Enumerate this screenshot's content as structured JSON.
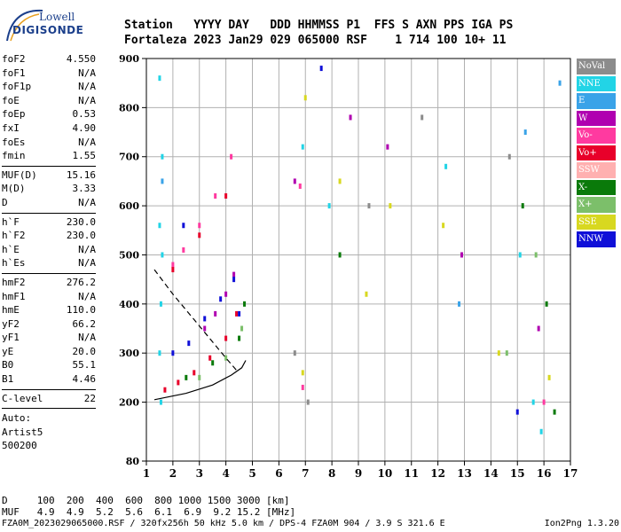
{
  "logo": {
    "line1": "Lowell",
    "line2": "DIGISONDE"
  },
  "header": {
    "row1": "Station   YYYY DAY   DDD HHMMSS P1  FFS S AXN PPS IGA PS",
    "row2": "Fortaleza 2023 Jan29 029 065000 RSF    1 714 100 10+ 11"
  },
  "params": {
    "group1": [
      {
        "label": "foF2",
        "value": "4.550"
      },
      {
        "label": "foF1",
        "value": "N/A"
      },
      {
        "label": "foF1p",
        "value": "N/A"
      },
      {
        "label": "foE",
        "value": "N/A"
      },
      {
        "label": "foEp",
        "value": "0.53"
      },
      {
        "label": "fxI",
        "value": "4.90"
      },
      {
        "label": "foEs",
        "value": "N/A"
      },
      {
        "label": "fmin",
        "value": "1.55"
      }
    ],
    "group2": [
      {
        "label": "MUF(D)",
        "value": "15.16"
      },
      {
        "label": "M(D)",
        "value": "3.33"
      },
      {
        "label": "D",
        "value": "N/A"
      }
    ],
    "group3": [
      {
        "label": "h`F",
        "value": "230.0"
      },
      {
        "label": "h`F2",
        "value": "230.0"
      },
      {
        "label": "h`E",
        "value": "N/A"
      },
      {
        "label": "h`Es",
        "value": "N/A"
      }
    ],
    "group4": [
      {
        "label": "hmF2",
        "value": "276.2"
      },
      {
        "label": "hmF1",
        "value": "N/A"
      },
      {
        "label": "hmE",
        "value": "110.0"
      },
      {
        "label": "yF2",
        "value": "66.2"
      },
      {
        "label": "yF1",
        "value": "N/A"
      },
      {
        "label": "yE",
        "value": "20.0"
      },
      {
        "label": "B0",
        "value": "55.1"
      },
      {
        "label": "B1",
        "value": "4.46"
      }
    ],
    "clevel": {
      "label": "C-level",
      "value": "22"
    },
    "auto": [
      "Auto:",
      "Artist5",
      "500200"
    ]
  },
  "legend": [
    {
      "label": "NoVal",
      "color": "#8c8c8c"
    },
    {
      "label": "NNE",
      "color": "#22d4e6"
    },
    {
      "label": "E",
      "color": "#3aa3e8"
    },
    {
      "label": "W",
      "color": "#b000b0"
    },
    {
      "label": "Vo-",
      "color": "#ff3aa0"
    },
    {
      "label": "Vo+",
      "color": "#e8002a"
    },
    {
      "label": "SSW",
      "color": "#ffb0b0"
    },
    {
      "label": "X-",
      "color": "#0a7a0a"
    },
    {
      "label": "X+",
      "color": "#7cbf6a"
    },
    {
      "label": "SSE",
      "color": "#d8d820"
    },
    {
      "label": "NNW",
      "color": "#1010d8"
    }
  ],
  "dtable": {
    "row1": "D     100  200  400  600  800 1000 1500 3000 [km]",
    "row2": "MUF   4.9  4.9  5.2  5.6  6.1  6.9  9.2 15.2 [MHz]"
  },
  "footer": {
    "left": "FZA0M_2023029065000.RSF / 320fx256h 50 kHz 5.0 km / DPS-4 FZA0M 904 / 3.9 S 321.6 E",
    "right": "Ion2Png 1.3.20"
  },
  "chart_data": {
    "type": "scatter",
    "title": "",
    "xlabel": "",
    "ylabel": "",
    "xlim": [
      1,
      17
    ],
    "ylim": [
      80,
      900
    ],
    "xticks": [
      1,
      2,
      3,
      4,
      5,
      6,
      7,
      8,
      9,
      10,
      11,
      12,
      13,
      14,
      15,
      16,
      17
    ],
    "yticks": [
      80,
      200,
      300,
      400,
      500,
      600,
      700,
      800,
      900
    ],
    "grid": true,
    "series": [
      {
        "name": "NNE",
        "color": "#22d4e6",
        "points": [
          [
            1.5,
            860
          ],
          [
            1.6,
            700
          ],
          [
            1.5,
            560
          ],
          [
            1.6,
            500
          ],
          [
            1.55,
            400
          ],
          [
            1.5,
            300
          ],
          [
            1.55,
            200
          ],
          [
            6.9,
            720
          ],
          [
            7.9,
            600
          ],
          [
            12.3,
            680
          ],
          [
            15.1,
            500
          ],
          [
            15.6,
            200
          ],
          [
            15.9,
            140
          ]
        ]
      },
      {
        "name": "W",
        "color": "#b000b0",
        "points": [
          [
            3.2,
            350
          ],
          [
            3.6,
            380
          ],
          [
            4.0,
            420
          ],
          [
            4.3,
            460
          ],
          [
            6.6,
            650
          ],
          [
            8.7,
            780
          ],
          [
            10.1,
            720
          ],
          [
            12.9,
            500
          ],
          [
            15.8,
            350
          ]
        ]
      },
      {
        "name": "Vo-",
        "color": "#ff3aa0",
        "points": [
          [
            2.0,
            480
          ],
          [
            2.4,
            510
          ],
          [
            3.0,
            560
          ],
          [
            3.6,
            620
          ],
          [
            4.2,
            700
          ],
          [
            6.8,
            640
          ],
          [
            6.9,
            230
          ],
          [
            16.0,
            200
          ]
        ]
      },
      {
        "name": "Vo+",
        "color": "#e8002a",
        "points": [
          [
            1.7,
            225
          ],
          [
            2.2,
            240
          ],
          [
            2.8,
            260
          ],
          [
            3.4,
            290
          ],
          [
            4.0,
            330
          ],
          [
            4.4,
            380
          ],
          [
            2.0,
            470
          ],
          [
            3.0,
            540
          ],
          [
            4.0,
            620
          ]
        ]
      },
      {
        "name": "X-",
        "color": "#0a7a0a",
        "points": [
          [
            2.5,
            250
          ],
          [
            3.5,
            280
          ],
          [
            4.5,
            330
          ],
          [
            4.7,
            400
          ],
          [
            8.3,
            500
          ],
          [
            15.2,
            600
          ],
          [
            16.1,
            400
          ],
          [
            16.4,
            180
          ]
        ]
      },
      {
        "name": "X+",
        "color": "#7cbf6a",
        "points": [
          [
            3.0,
            250
          ],
          [
            4.0,
            290
          ],
          [
            4.6,
            350
          ],
          [
            14.6,
            300
          ],
          [
            15.7,
            500
          ]
        ]
      },
      {
        "name": "SSE",
        "color": "#d8d820",
        "points": [
          [
            6.9,
            260
          ],
          [
            7.0,
            820
          ],
          [
            8.3,
            650
          ],
          [
            9.3,
            420
          ],
          [
            10.2,
            600
          ],
          [
            12.2,
            560
          ],
          [
            14.3,
            300
          ],
          [
            16.2,
            250
          ]
        ]
      },
      {
        "name": "NNW",
        "color": "#1010d8",
        "points": [
          [
            2.0,
            300
          ],
          [
            2.6,
            320
          ],
          [
            3.2,
            370
          ],
          [
            3.8,
            410
          ],
          [
            4.3,
            450
          ],
          [
            4.5,
            380
          ],
          [
            2.4,
            560
          ],
          [
            7.6,
            880
          ],
          [
            15.0,
            180
          ]
        ]
      },
      {
        "name": "E",
        "color": "#3aa3e8",
        "points": [
          [
            1.6,
            650
          ],
          [
            12.8,
            400
          ],
          [
            15.3,
            750
          ],
          [
            16.6,
            850
          ]
        ]
      },
      {
        "name": "NoVal",
        "color": "#8c8c8c",
        "points": [
          [
            6.6,
            300
          ],
          [
            7.1,
            200
          ],
          [
            9.4,
            600
          ],
          [
            11.4,
            780
          ],
          [
            14.7,
            700
          ]
        ]
      }
    ],
    "traces": [
      {
        "style": "solid",
        "points": [
          [
            1.3,
            205
          ],
          [
            2.5,
            218
          ],
          [
            3.5,
            235
          ],
          [
            4.2,
            255
          ],
          [
            4.6,
            270
          ],
          [
            4.75,
            285
          ]
        ]
      },
      {
        "style": "dashed",
        "points": [
          [
            1.3,
            470
          ],
          [
            2.0,
            420
          ],
          [
            3.0,
            355
          ],
          [
            4.0,
            290
          ],
          [
            4.4,
            265
          ]
        ]
      }
    ]
  }
}
